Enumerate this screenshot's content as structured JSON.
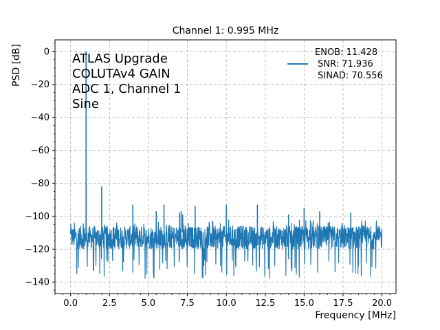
{
  "chart_data": {
    "type": "line",
    "title": "Channel 1: 0.995 MHz",
    "xlabel": "Frequency [MHz]",
    "ylabel": "PSD [dB]",
    "xlim": [
      -1.0,
      20.9
    ],
    "ylim": [
      -147,
      7
    ],
    "xticks": [
      0.0,
      2.5,
      5.0,
      7.5,
      10.0,
      12.5,
      15.0,
      17.5,
      20.0
    ],
    "xtick_labels": [
      "0.0",
      "2.5",
      "5.0",
      "7.5",
      "10.0",
      "12.5",
      "15.0",
      "17.5",
      "20.0"
    ],
    "yticks": [
      0,
      -20,
      -40,
      -60,
      -80,
      -100,
      -120,
      -140
    ],
    "ytick_labels": [
      "0",
      "−20",
      "−40",
      "−60",
      "−80",
      "−100",
      "−120",
      "−140"
    ],
    "grid": true,
    "legend_position": "top-right",
    "annotation_lines": [
      "ATLAS Upgrade",
      "COLUTAv4 GAIN",
      "ADC 1, Channel 1",
      "Sine"
    ],
    "legend_lines": [
      "ENOB: 11.428",
      " SNR: 71.936",
      " SINAD: 70.556"
    ],
    "color": "#1f77b4",
    "noise_floor": {
      "x_range": [
        0.0,
        20.0
      ],
      "mean_db": -113,
      "min_db": -140,
      "max_db": -102
    },
    "series": [
      {
        "values": [
          [
            0.995,
            0.0
          ],
          [
            1.0,
            -79.0
          ],
          [
            2.0,
            -82.0
          ],
          [
            4.0,
            -93.0
          ],
          [
            5.5,
            -97.0
          ],
          [
            6.0,
            -93.0
          ],
          [
            7.0,
            -98.0
          ],
          [
            7.1,
            -97.0
          ],
          [
            7.2,
            -99.0
          ],
          [
            8.0,
            -94.0
          ],
          [
            10.0,
            -93.0
          ],
          [
            12.0,
            -93.0
          ],
          [
            14.0,
            -99.0
          ],
          [
            15.0,
            -95.0
          ],
          [
            16.0,
            -97.0
          ],
          [
            18.0,
            -98.0
          ]
        ]
      }
    ]
  }
}
